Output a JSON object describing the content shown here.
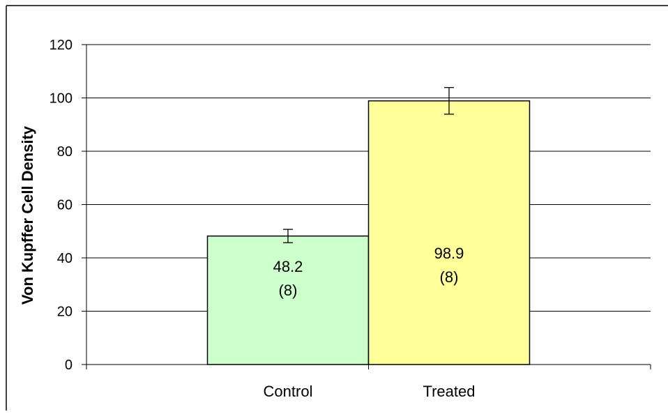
{
  "chart_data": {
    "type": "bar",
    "title": "",
    "xlabel": "",
    "ylabel": "Von Kupffer Cell Density",
    "ylim": [
      0,
      120
    ],
    "yticks": [
      0,
      20,
      40,
      60,
      80,
      100,
      120
    ],
    "grid": true,
    "legend": "none",
    "categories": [
      "Control",
      "Treated"
    ],
    "values": [
      48.2,
      98.9
    ],
    "errors": [
      2.5,
      5
    ],
    "n_labels": [
      "(8)",
      "(8)"
    ],
    "value_labels": [
      "48.2",
      "98.9"
    ],
    "colors": [
      "#ccffcc",
      "#ffff99"
    ]
  }
}
